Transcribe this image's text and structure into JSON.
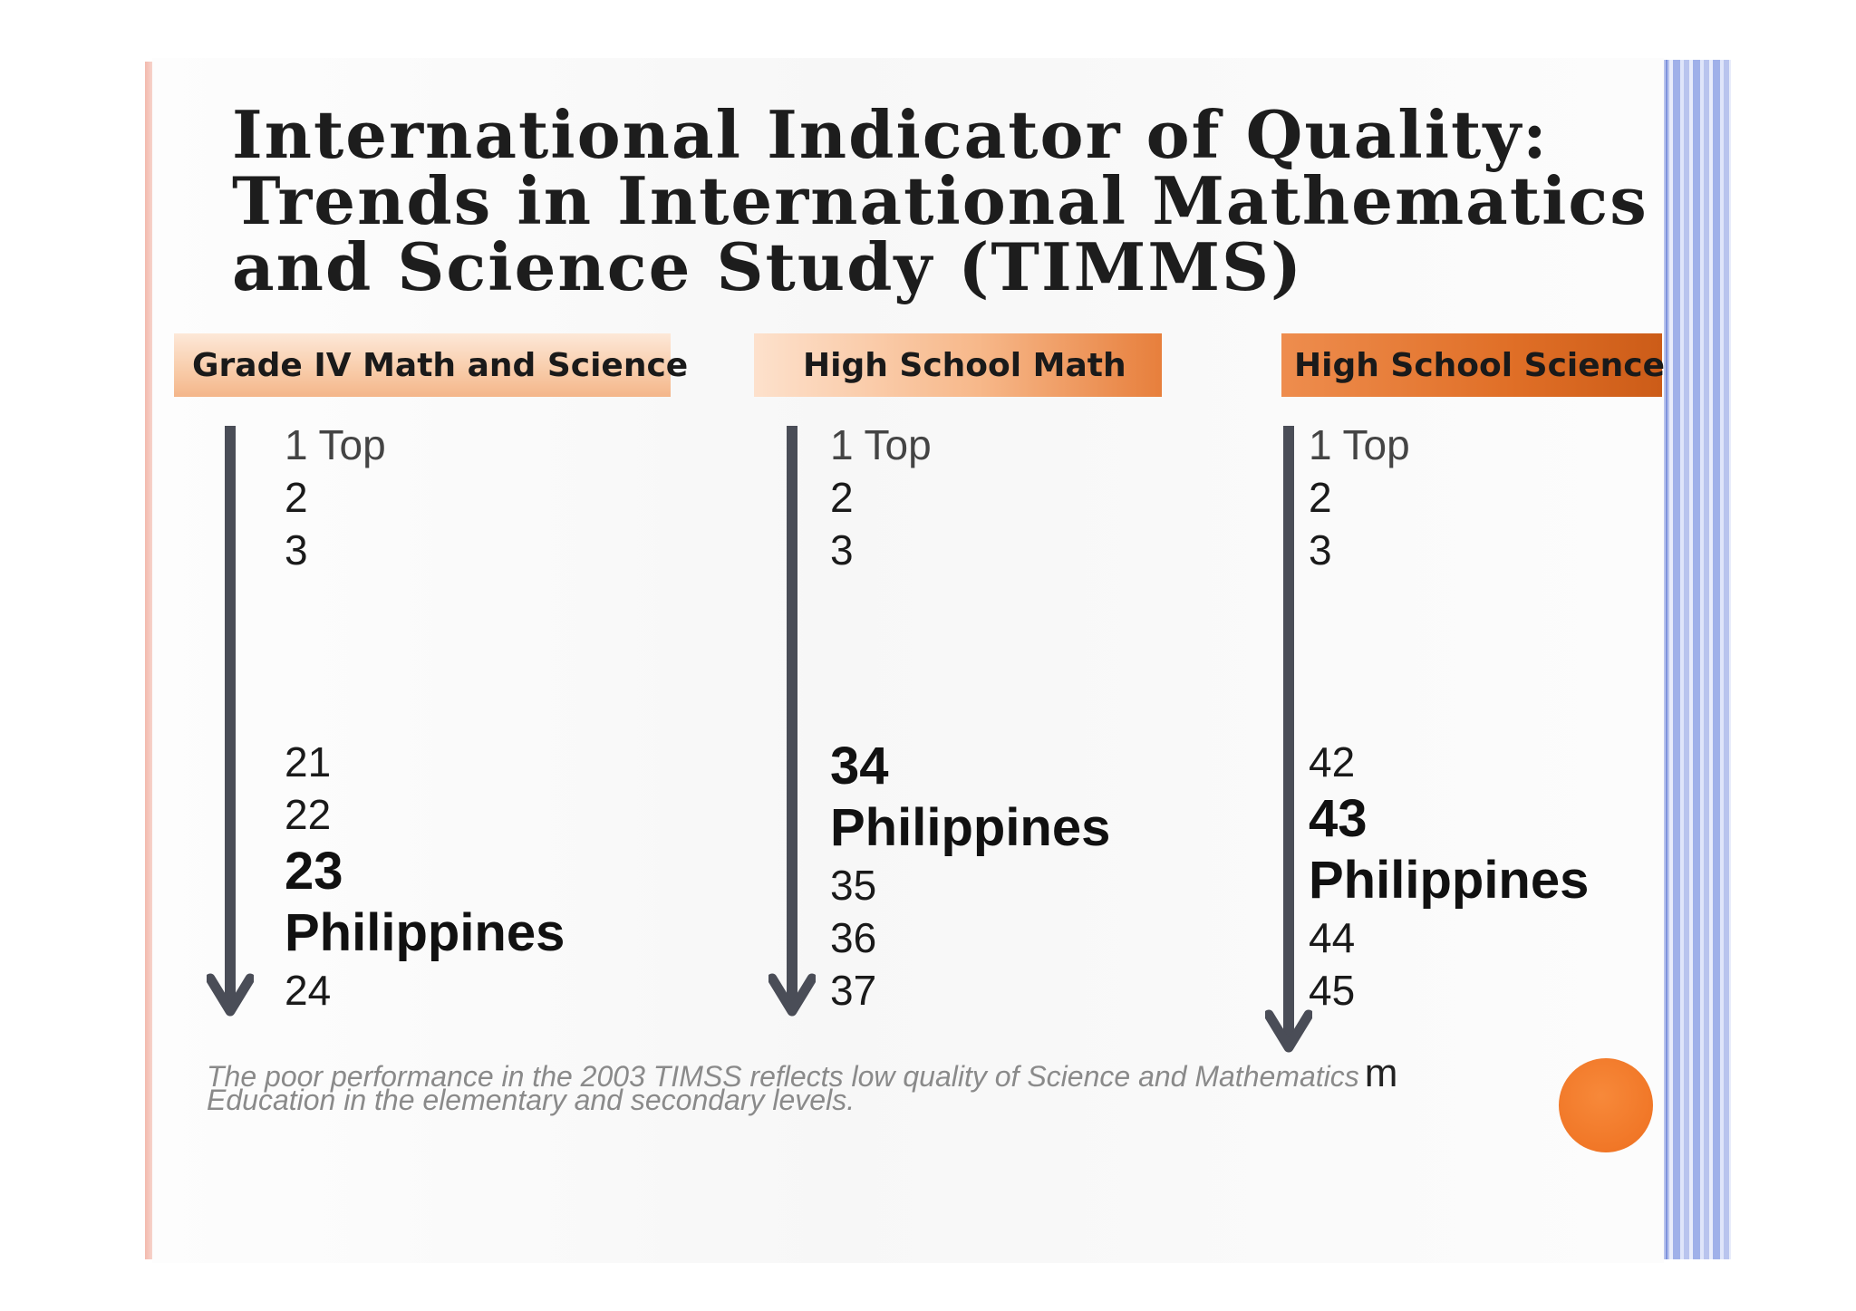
{
  "slide": {
    "title_lines": [
      "International Indicator of Quality:",
      "Trends in International Mathematics",
      "and Science Study (TIMMS)"
    ],
    "columns": [
      {
        "header": "Grade IV Math and Science",
        "ranks": [
          {
            "text": "1 Top",
            "style": "top"
          },
          {
            "text": "2",
            "style": "normal"
          },
          {
            "text": "3",
            "style": "normal"
          },
          {
            "text": "21",
            "style": "normal"
          },
          {
            "text": "22",
            "style": "normal"
          },
          {
            "text": "23",
            "style": "bold"
          },
          {
            "text": "Philippines",
            "style": "bold"
          },
          {
            "text": "24",
            "style": "normal"
          }
        ]
      },
      {
        "header": "High School Math",
        "ranks": [
          {
            "text": "1 Top",
            "style": "top"
          },
          {
            "text": "2",
            "style": "normal"
          },
          {
            "text": "3",
            "style": "normal"
          },
          {
            "text": "34",
            "style": "bold"
          },
          {
            "text": "Philippines",
            "style": "bold"
          },
          {
            "text": "35",
            "style": "normal"
          },
          {
            "text": "36",
            "style": "normal"
          },
          {
            "text": "37",
            "style": "normal"
          }
        ]
      },
      {
        "header": "High School Science",
        "ranks": [
          {
            "text": "1 Top",
            "style": "top"
          },
          {
            "text": "2",
            "style": "normal"
          },
          {
            "text": "3",
            "style": "normal"
          },
          {
            "text": "42",
            "style": "normal"
          },
          {
            "text": "43",
            "style": "bold"
          },
          {
            "text": "Philippines",
            "style": "bold"
          },
          {
            "text": "44",
            "style": "normal"
          },
          {
            "text": "45",
            "style": "normal"
          }
        ]
      }
    ],
    "footnote": {
      "line1": "The poor performance in  the 2003 TIMSS  reflects  low quality of  Science and Mathematics",
      "tail": "m",
      "line2": "Education in  the elementary and secondary levels."
    },
    "colors": {
      "accent_orange": "#ee6f1f",
      "arrow": "#4a4d57",
      "deco_blue": "#9fb0e9",
      "left_rule": "#f3b9ad"
    }
  }
}
